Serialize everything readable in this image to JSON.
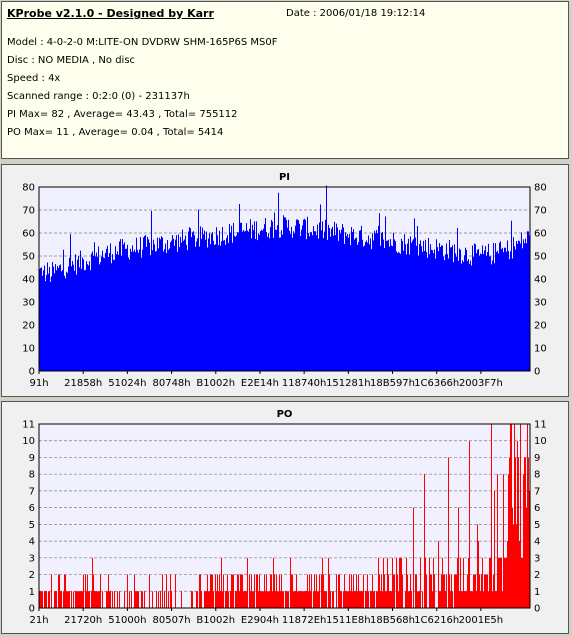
{
  "header": {
    "title": "KProbe v2.1.0 - Designed by Karr",
    "date": "Date : 2006/01/18 19:12:14",
    "lines": [
      "Model : 4-0-2-0 M:LITE-ON DVDRW SHM-165P6S MS0F",
      "Disc : NO MEDIA , No disc",
      "Speed : 4x",
      "Scanned range : 0:2:0 (0) - 231137h",
      "PI Max= 82 , Average= 43.43 , Total= 755112",
      "PO Max= 11 , Average= 0.04 , Total= 5414"
    ]
  },
  "chart_data": [
    {
      "type": "bar",
      "title": "PI",
      "ylim": [
        0,
        80
      ],
      "yticks": [
        0,
        10,
        20,
        30,
        40,
        50,
        60,
        70,
        80
      ],
      "xtick_labels": [
        "91h",
        "21858h",
        "51024h",
        "80748h",
        "B1002h",
        "E2E14h",
        "118740h",
        "151281h",
        "18B597h",
        "1C6366h",
        "2003F7h"
      ],
      "color": "#0000ff",
      "grid": true,
      "profile_x": [
        0,
        0.05,
        0.15,
        0.3,
        0.45,
        0.5,
        0.55,
        0.7,
        0.82,
        0.9,
        0.95,
        1.0
      ],
      "profile_y": [
        40,
        45,
        52,
        57,
        62,
        63,
        62,
        57,
        53,
        50,
        52,
        58
      ]
    },
    {
      "type": "bar",
      "title": "PO",
      "ylim": [
        0,
        11
      ],
      "yticks": [
        0,
        1,
        2,
        3,
        4,
        5,
        6,
        7,
        8,
        9,
        10,
        11
      ],
      "xtick_labels": [
        "21h",
        "21720h",
        "51000h",
        "80507h",
        "B1002h",
        "E2904h",
        "11872Eh",
        "1511E8h",
        "18B568h",
        "1C6216h",
        "2001E5h"
      ],
      "color": "#ff0000",
      "grid": true
    }
  ]
}
